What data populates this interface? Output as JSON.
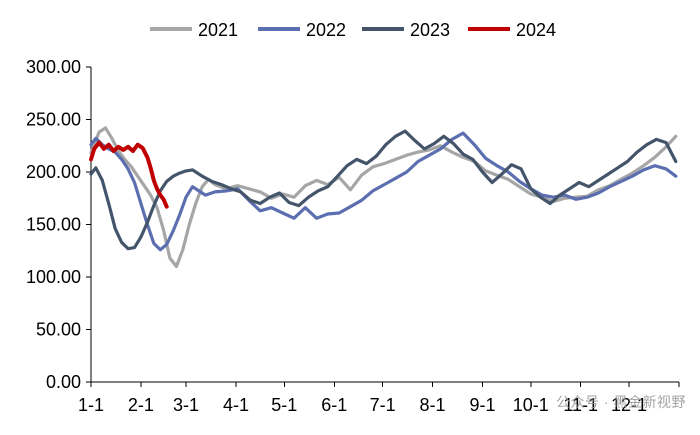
{
  "chart_data": {
    "type": "line",
    "title": "",
    "xlabel": "",
    "ylabel": "",
    "x_ticks": [
      "1-1",
      "2-1",
      "3-1",
      "4-1",
      "5-1",
      "6-1",
      "7-1",
      "8-1",
      "9-1",
      "10-1",
      "11-1",
      "12-1"
    ],
    "y_ticks": [
      "0.00",
      "50.00",
      "100.00",
      "150.00",
      "200.00",
      "250.00",
      "300.00"
    ],
    "ylim": [
      0,
      300
    ],
    "x_unit": "day of year",
    "xlim": [
      1,
      366
    ],
    "legend_position": "top",
    "grid": false,
    "series": [
      {
        "name": "2021",
        "color": "#a6a6a6",
        "points": [
          [
            1,
            218
          ],
          [
            6,
            238
          ],
          [
            10,
            242
          ],
          [
            14,
            232
          ],
          [
            18,
            220
          ],
          [
            22,
            212
          ],
          [
            26,
            205
          ],
          [
            30,
            196
          ],
          [
            34,
            187
          ],
          [
            38,
            178
          ],
          [
            42,
            166
          ],
          [
            46,
            145
          ],
          [
            50,
            118
          ],
          [
            54,
            110
          ],
          [
            58,
            126
          ],
          [
            62,
            150
          ],
          [
            66,
            170
          ],
          [
            70,
            186
          ],
          [
            74,
            193
          ],
          [
            78,
            188
          ],
          [
            85,
            184
          ],
          [
            92,
            187
          ],
          [
            99,
            184
          ],
          [
            106,
            181
          ],
          [
            113,
            175
          ],
          [
            120,
            179
          ],
          [
            127,
            176
          ],
          [
            134,
            187
          ],
          [
            141,
            192
          ],
          [
            148,
            188
          ],
          [
            155,
            195
          ],
          [
            162,
            183
          ],
          [
            169,
            197
          ],
          [
            176,
            205
          ],
          [
            183,
            208
          ],
          [
            190,
            212
          ],
          [
            197,
            216
          ],
          [
            204,
            219
          ],
          [
            211,
            221
          ],
          [
            218,
            225
          ],
          [
            225,
            219
          ],
          [
            232,
            214
          ],
          [
            239,
            210
          ],
          [
            246,
            201
          ],
          [
            253,
            197
          ],
          [
            260,
            193
          ],
          [
            267,
            186
          ],
          [
            274,
            179
          ],
          [
            281,
            176
          ],
          [
            288,
            172
          ],
          [
            295,
            175
          ],
          [
            302,
            176
          ],
          [
            309,
            177
          ],
          [
            316,
            183
          ],
          [
            323,
            187
          ],
          [
            330,
            193
          ],
          [
            337,
            199
          ],
          [
            344,
            206
          ],
          [
            351,
            214
          ],
          [
            358,
            224
          ],
          [
            364,
            234
          ]
        ]
      },
      {
        "name": "2022",
        "color": "#5b6eb0",
        "points": [
          [
            1,
            226
          ],
          [
            4,
            232
          ],
          [
            8,
            226
          ],
          [
            12,
            222
          ],
          [
            16,
            219
          ],
          [
            20,
            212
          ],
          [
            24,
            203
          ],
          [
            28,
            190
          ],
          [
            32,
            170
          ],
          [
            36,
            150
          ],
          [
            40,
            132
          ],
          [
            44,
            126
          ],
          [
            48,
            131
          ],
          [
            52,
            144
          ],
          [
            56,
            159
          ],
          [
            60,
            176
          ],
          [
            64,
            186
          ],
          [
            68,
            182
          ],
          [
            72,
            178
          ],
          [
            78,
            181
          ],
          [
            85,
            182
          ],
          [
            92,
            184
          ],
          [
            99,
            173
          ],
          [
            106,
            163
          ],
          [
            113,
            166
          ],
          [
            120,
            161
          ],
          [
            127,
            156
          ],
          [
            134,
            166
          ],
          [
            141,
            156
          ],
          [
            148,
            160
          ],
          [
            155,
            161
          ],
          [
            162,
            167
          ],
          [
            169,
            173
          ],
          [
            176,
            182
          ],
          [
            183,
            188
          ],
          [
            190,
            194
          ],
          [
            197,
            200
          ],
          [
            204,
            210
          ],
          [
            211,
            216
          ],
          [
            218,
            222
          ],
          [
            225,
            231
          ],
          [
            232,
            237
          ],
          [
            239,
            226
          ],
          [
            246,
            213
          ],
          [
            253,
            206
          ],
          [
            260,
            200
          ],
          [
            267,
            191
          ],
          [
            274,
            184
          ],
          [
            281,
            178
          ],
          [
            288,
            176
          ],
          [
            295,
            178
          ],
          [
            302,
            174
          ],
          [
            309,
            176
          ],
          [
            316,
            180
          ],
          [
            323,
            186
          ],
          [
            330,
            191
          ],
          [
            337,
            196
          ],
          [
            344,
            202
          ],
          [
            351,
            206
          ],
          [
            358,
            203
          ],
          [
            364,
            196
          ]
        ]
      },
      {
        "name": "2023",
        "color": "#44546a",
        "points": [
          [
            1,
            198
          ],
          [
            4,
            204
          ],
          [
            8,
            192
          ],
          [
            12,
            170
          ],
          [
            16,
            146
          ],
          [
            20,
            133
          ],
          [
            24,
            127
          ],
          [
            28,
            128
          ],
          [
            32,
            138
          ],
          [
            36,
            152
          ],
          [
            40,
            168
          ],
          [
            44,
            182
          ],
          [
            48,
            191
          ],
          [
            52,
            196
          ],
          [
            56,
            199
          ],
          [
            60,
            201
          ],
          [
            64,
            202
          ],
          [
            70,
            196
          ],
          [
            76,
            191
          ],
          [
            82,
            188
          ],
          [
            88,
            184
          ],
          [
            94,
            181
          ],
          [
            100,
            173
          ],
          [
            106,
            170
          ],
          [
            112,
            176
          ],
          [
            118,
            180
          ],
          [
            124,
            171
          ],
          [
            130,
            168
          ],
          [
            136,
            176
          ],
          [
            142,
            182
          ],
          [
            148,
            186
          ],
          [
            154,
            196
          ],
          [
            160,
            206
          ],
          [
            166,
            212
          ],
          [
            172,
            208
          ],
          [
            178,
            215
          ],
          [
            184,
            226
          ],
          [
            190,
            234
          ],
          [
            196,
            239
          ],
          [
            202,
            230
          ],
          [
            208,
            222
          ],
          [
            214,
            227
          ],
          [
            220,
            234
          ],
          [
            226,
            227
          ],
          [
            232,
            217
          ],
          [
            238,
            212
          ],
          [
            244,
            200
          ],
          [
            250,
            190
          ],
          [
            256,
            198
          ],
          [
            262,
            207
          ],
          [
            268,
            203
          ],
          [
            274,
            184
          ],
          [
            280,
            176
          ],
          [
            286,
            170
          ],
          [
            292,
            178
          ],
          [
            298,
            184
          ],
          [
            304,
            190
          ],
          [
            310,
            186
          ],
          [
            316,
            192
          ],
          [
            322,
            198
          ],
          [
            328,
            204
          ],
          [
            334,
            210
          ],
          [
            340,
            219
          ],
          [
            346,
            226
          ],
          [
            352,
            231
          ],
          [
            358,
            228
          ],
          [
            364,
            210
          ]
        ]
      },
      {
        "name": "2024",
        "color": "#c00000",
        "points": [
          [
            1,
            212
          ],
          [
            3,
            222
          ],
          [
            6,
            228
          ],
          [
            9,
            222
          ],
          [
            12,
            226
          ],
          [
            15,
            220
          ],
          [
            18,
            224
          ],
          [
            21,
            221
          ],
          [
            24,
            224
          ],
          [
            27,
            220
          ],
          [
            30,
            226
          ],
          [
            33,
            223
          ],
          [
            36,
            214
          ],
          [
            38,
            204
          ],
          [
            40,
            192
          ],
          [
            42,
            184
          ],
          [
            44,
            178
          ],
          [
            46,
            174
          ],
          [
            48,
            167
          ]
        ]
      }
    ]
  },
  "watermark": "公众号 · 黑金新视野"
}
